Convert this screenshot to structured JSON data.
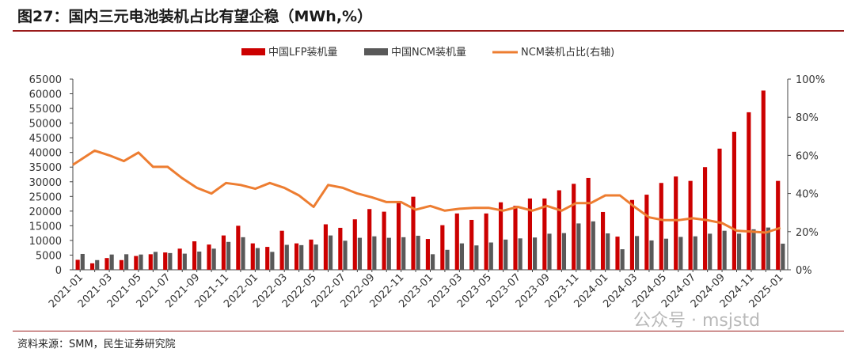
{
  "title": "图27：国内三元电池装机占比有望企稳（MWh,%）",
  "source": "资料来源：SMM，民生证券研究院",
  "watermark": "公众号 · msjstd",
  "colors": {
    "lfp": "#cc0000",
    "ncm": "#595959",
    "ratio": "#ed7d31",
    "axis": "#444444"
  },
  "chart_data": {
    "type": "bar",
    "categories": [
      "2021-01",
      "2021-02",
      "2021-03",
      "2021-04",
      "2021-05",
      "2021-06",
      "2021-07",
      "2021-08",
      "2021-09",
      "2021-10",
      "2021-11",
      "2021-12",
      "2022-01",
      "2022-02",
      "2022-03",
      "2022-04",
      "2022-05",
      "2022-06",
      "2022-07",
      "2022-08",
      "2022-09",
      "2022-10",
      "2022-11",
      "2022-12",
      "2023-01",
      "2023-02",
      "2023-03",
      "2023-04",
      "2023-05",
      "2023-06",
      "2023-07",
      "2023-08",
      "2023-09",
      "2023-10",
      "2023-11",
      "2023-12",
      "2024-01",
      "2024-02",
      "2024-03",
      "2024-04",
      "2024-05",
      "2024-06",
      "2024-07",
      "2024-08",
      "2024-09",
      "2024-10",
      "2024-11",
      "2024-12",
      "2025-01"
    ],
    "tick_labels": [
      "2021-01",
      "2021-03",
      "2021-05",
      "2021-07",
      "2021-09",
      "2021-11",
      "2022-01",
      "2022-03",
      "2022-05",
      "2022-07",
      "2022-09",
      "2022-11",
      "2023-01",
      "2023-03",
      "2023-05",
      "2023-07",
      "2023-09",
      "2023-11",
      "2024-01",
      "2024-03",
      "2024-05",
      "2024-07",
      "2024-09",
      "2024-11",
      "2025-01"
    ],
    "series": [
      {
        "name": "中国LFP装机量",
        "type": "bar",
        "axis": "left",
        "values": [
          3400,
          2200,
          4000,
          3300,
          4700,
          5300,
          5900,
          7200,
          9700,
          8600,
          11700,
          15000,
          9000,
          7800,
          13300,
          9000,
          10300,
          15500,
          14300,
          17200,
          20700,
          19800,
          23100,
          24900,
          10500,
          15200,
          19200,
          17000,
          19200,
          23000,
          21800,
          24300,
          24300,
          27100,
          29300,
          31300,
          19700,
          11300,
          23800,
          25600,
          29600,
          31800,
          30300,
          35000,
          41300,
          47000,
          53700,
          61100,
          30300
        ]
      },
      {
        "name": "中国NCM装机量",
        "type": "bar",
        "axis": "left",
        "values": [
          5400,
          3300,
          5200,
          5300,
          5200,
          6100,
          5700,
          5500,
          6200,
          7200,
          9500,
          11100,
          7400,
          6100,
          8500,
          8400,
          8600,
          11700,
          9900,
          10900,
          11400,
          10900,
          11100,
          11600,
          5300,
          6800,
          9000,
          8300,
          9300,
          10300,
          10700,
          11000,
          12300,
          12500,
          15800,
          16500,
          12400,
          7000,
          11500,
          10000,
          10600,
          11200,
          11400,
          12300,
          13300,
          12300,
          13800,
          14400,
          8900
        ]
      },
      {
        "name": "NCM装机占比(右轴)",
        "type": "line",
        "axis": "right",
        "values": [
          55,
          62.5,
          60,
          57,
          61.5,
          54,
          54,
          48,
          43,
          40,
          45.5,
          44.5,
          42.5,
          45.5,
          43,
          39,
          33,
          44.5,
          43,
          40,
          38,
          35.5,
          35.5,
          31.5,
          33.5,
          31,
          32,
          32.5,
          32.5,
          31,
          33,
          31,
          33.5,
          31,
          35,
          35,
          39,
          39,
          33,
          27.5,
          26,
          26,
          27,
          26,
          24.5,
          20.5,
          20,
          19.5,
          22
        ]
      }
    ],
    "left_axis": {
      "min": 0,
      "max": 65000,
      "ticks": [
        0,
        5000,
        10000,
        15000,
        20000,
        25000,
        30000,
        35000,
        40000,
        45000,
        50000,
        55000,
        60000,
        65000
      ]
    },
    "right_axis": {
      "min": 0,
      "max": 100,
      "ticks": [
        "0%",
        "20%",
        "40%",
        "60%",
        "80%",
        "100%"
      ]
    },
    "legend_position": "top-center",
    "grid": false
  }
}
